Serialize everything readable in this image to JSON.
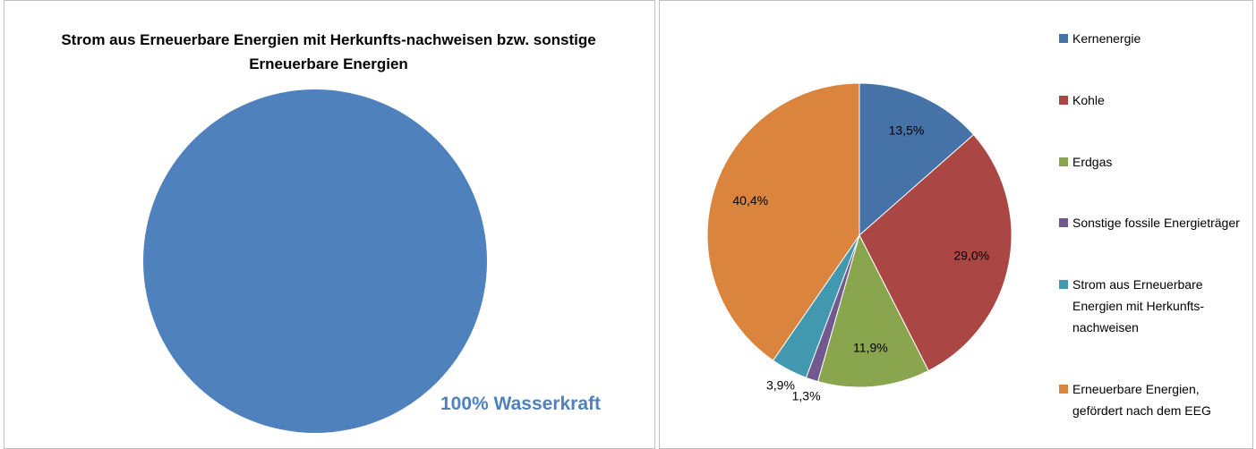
{
  "chart_data": [
    {
      "type": "pie",
      "title": "Strom aus Erneuerbare Energien mit Herkunfts-nachweisen bzw. sonstige Erneuerbare Energien",
      "categories": [
        "Wasserkraft"
      ],
      "values": [
        100
      ],
      "value_labels": [
        "100% Wasserkraft"
      ],
      "colors": [
        "#4f81bd"
      ]
    },
    {
      "type": "pie",
      "categories": [
        "Kernenergie",
        "Kohle",
        "Erdgas",
        "Sonstige fossile Energieträger",
        "Strom aus Erneuerbare Energien mit Herkunfts-nachweisen",
        "Erneuerbare Energien, gefördert nach dem EEG"
      ],
      "values": [
        13.5,
        29.0,
        11.9,
        1.3,
        3.9,
        40.4
      ],
      "value_labels": [
        "13,5%",
        "29,0%",
        "11,9%",
        "1,3%",
        "3,9%",
        "40,4%"
      ],
      "colors": [
        "#4572a7",
        "#aa4643",
        "#89a54e",
        "#71588f",
        "#4198af",
        "#db843d"
      ],
      "legend": "right"
    }
  ]
}
